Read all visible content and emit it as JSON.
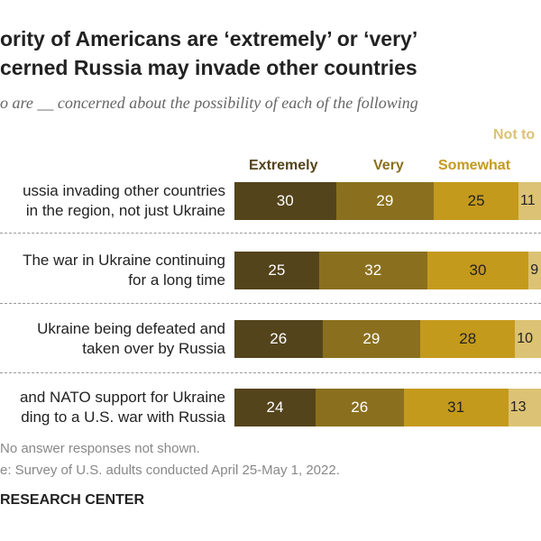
{
  "title": {
    "line1": "ority of Americans are ‘extremely’ or ‘very’",
    "line2": "cerned Russia may invade other countries"
  },
  "subtitle": "o are __ concerned about the possibility of each of the following",
  "chart_data": {
    "type": "bar",
    "orientation": "horizontal",
    "stacked": true,
    "categories": [
      "ussia invading other countries in the region, not just Ukraine",
      "The war in Ukraine continuing for a long time",
      "Ukraine being defeated and taken over by Russia",
      "and NATO support for Ukraine ding to a U.S. war with Russia"
    ],
    "category_lines": [
      [
        "ussia invading other countries",
        "in the region, not just Ukraine"
      ],
      [
        "The war in Ukraine continuing",
        "for a long time"
      ],
      [
        "Ukraine being defeated and",
        "taken over by Russia"
      ],
      [
        "and NATO support for Ukraine",
        "ding to a U.S. war with Russia"
      ]
    ],
    "series": [
      {
        "name": "Extremely",
        "color": "#54441c",
        "values": [
          30,
          25,
          26,
          24
        ]
      },
      {
        "name": "Very",
        "color": "#8a701e",
        "values": [
          29,
          32,
          29,
          26
        ]
      },
      {
        "name": "Somewhat",
        "color": "#c49a1c",
        "values": [
          25,
          30,
          28,
          31
        ]
      },
      {
        "name": "Not to",
        "color": "#dcc274",
        "values": [
          11,
          9,
          10,
          13
        ]
      }
    ]
  },
  "notes": {
    "note": "No answer responses not shown.",
    "source": "e: Survey of U.S. adults conducted April 25-May 1, 2022.",
    "brand": "RESEARCH CENTER"
  }
}
